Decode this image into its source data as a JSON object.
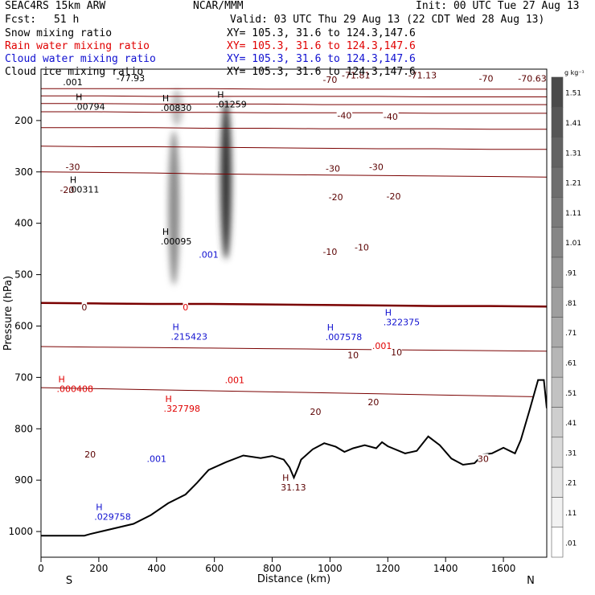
{
  "header": {
    "model": "SEAC4RS 15km ARW",
    "org": "NCAR/MMM",
    "init": "Init: 00 UTC Tue 27 Aug 13",
    "fcst_label": "Fcst:",
    "fcst_value": "51 h",
    "valid": "Valid: 03 UTC Thu 29 Aug 13 (22 CDT Wed 28 Aug 13)",
    "fields": [
      {
        "label": "Snow mixing ratio",
        "xy": "XY= 105.3, 31.6 to 124.3,147.6",
        "color": "#000000"
      },
      {
        "label": "Rain water mixing ratio",
        "xy": "XY= 105.3, 31.6 to 124.3,147.6",
        "color": "#e00000"
      },
      {
        "label": "Cloud water mixing ratio",
        "xy": "XY= 105.3, 31.6 to 124.3,147.6",
        "color": "#1010d0"
      },
      {
        "label": "Cloud ice mixing ratio",
        "xy": "XY= 105.3, 31.6 to 124.3,147.6",
        "color": "#000000"
      }
    ]
  },
  "chart_data": {
    "type": "cross-section",
    "xlabel": "Distance (km)",
    "ylabel": "Pressure (hPa)",
    "xlim": [
      0,
      1750
    ],
    "ylim": [
      1050,
      100
    ],
    "x_ticks": [
      0,
      200,
      400,
      600,
      800,
      1000,
      1200,
      1400,
      1600
    ],
    "y_ticks": [
      1000,
      900,
      800,
      700,
      600,
      500,
      400,
      300,
      200
    ],
    "x_end_labels": {
      "left": "S",
      "right": "N"
    },
    "colorbar": {
      "unit": "g kg⁻¹",
      "levels": [
        ".01",
        ".11",
        ".21",
        ".31",
        ".41",
        ".51",
        ".61",
        ".71",
        ".81",
        ".91",
        "1.01",
        "1.11",
        "1.21",
        "1.31",
        "1.41",
        "1.51"
      ],
      "colors": [
        "#ffffff",
        "#f2f2f2",
        "#e6e6e6",
        "#dadada",
        "#cecece",
        "#c2c2c2",
        "#b6b6b6",
        "#aaaaaa",
        "#9e9e9e",
        "#929292",
        "#868686",
        "#7a7a7a",
        "#6e6e6e",
        "#626262",
        "#565656",
        "#4a4a4a"
      ]
    },
    "terrain": [
      [
        0,
        1008
      ],
      [
        150,
        1008
      ],
      [
        170,
        1005
      ],
      [
        320,
        985
      ],
      [
        380,
        968
      ],
      [
        440,
        945
      ],
      [
        500,
        928
      ],
      [
        540,
        905
      ],
      [
        580,
        880
      ],
      [
        640,
        865
      ],
      [
        700,
        852
      ],
      [
        760,
        857
      ],
      [
        800,
        853
      ],
      [
        840,
        860
      ],
      [
        860,
        875
      ],
      [
        875,
        895
      ],
      [
        890,
        875
      ],
      [
        900,
        860
      ],
      [
        940,
        840
      ],
      [
        980,
        828
      ],
      [
        1020,
        835
      ],
      [
        1050,
        845
      ],
      [
        1080,
        838
      ],
      [
        1120,
        832
      ],
      [
        1160,
        838
      ],
      [
        1180,
        826
      ],
      [
        1200,
        834
      ],
      [
        1260,
        848
      ],
      [
        1300,
        843
      ],
      [
        1340,
        815
      ],
      [
        1380,
        832
      ],
      [
        1420,
        858
      ],
      [
        1460,
        870
      ],
      [
        1500,
        867
      ],
      [
        1530,
        850
      ],
      [
        1560,
        848
      ],
      [
        1600,
        837
      ],
      [
        1640,
        848
      ],
      [
        1660,
        822
      ],
      [
        1690,
        765
      ],
      [
        1720,
        705
      ],
      [
        1740,
        705
      ],
      [
        1750,
        760
      ]
    ],
    "isotherms": [
      {
        "t": -70,
        "p": [
          138,
          138,
          138,
          138,
          139,
          139,
          139,
          139,
          139,
          139
        ]
      },
      {
        "t": -60,
        "p": [
          152,
          152,
          153,
          153,
          153,
          153,
          153,
          154,
          154,
          154
        ]
      },
      {
        "t": -50,
        "p": [
          167,
          167,
          168,
          168,
          168,
          169,
          169,
          169,
          169,
          169
        ]
      },
      {
        "t": -40,
        "p": [
          183,
          183,
          184,
          184,
          185,
          185,
          185,
          186,
          186,
          186
        ]
      },
      {
        "t": -30,
        "p": [
          214,
          214,
          214,
          215,
          215,
          216,
          216,
          216,
          217,
          217
        ]
      },
      {
        "t": -20,
        "p": [
          250,
          251,
          251,
          252,
          253,
          254,
          255,
          255,
          256,
          256
        ]
      },
      {
        "t": -10,
        "p": [
          300,
          301,
          302,
          304,
          305,
          306,
          307,
          308,
          309,
          310
        ]
      },
      {
        "t": 0,
        "p": [
          555,
          556,
          557,
          557,
          558,
          559,
          560,
          561,
          561,
          562
        ]
      },
      {
        "t": 10,
        "p": [
          640,
          641,
          642,
          643,
          644,
          645,
          646,
          647,
          648,
          649
        ]
      },
      {
        "t": 20,
        "p": [
          720,
          722,
          724,
          726,
          728,
          730,
          732,
          734,
          736,
          738
        ]
      }
    ],
    "contour_labels": [
      {
        "text": "-77.93",
        "x": 310,
        "p": 117,
        "color": "#000000"
      },
      {
        "text": "-71.81",
        "x": 1090,
        "p": 112,
        "color": "#5a0000"
      },
      {
        "text": "-71.13",
        "x": 1320,
        "p": 112,
        "color": "#5a0000"
      },
      {
        "text": "-70",
        "x": 1000,
        "p": 120,
        "color": "#5a0000"
      },
      {
        "text": "-70",
        "x": 1540,
        "p": 118,
        "color": "#5a0000"
      },
      {
        "text": "-70.63",
        "x": 1700,
        "p": 118,
        "color": "#5a0000"
      },
      {
        "text": "-40",
        "x": 1050,
        "p": 190,
        "color": "#5a0000"
      },
      {
        "text": "-40",
        "x": 1210,
        "p": 192,
        "color": "#5a0000"
      },
      {
        "text": "-30",
        "x": 1010,
        "p": 293,
        "color": "#5a0000"
      },
      {
        "text": "-30",
        "x": 1160,
        "p": 290,
        "color": "#5a0000"
      },
      {
        "text": "-30",
        "x": 110,
        "p": 290,
        "color": "#5a0000"
      },
      {
        "text": "-20",
        "x": 1020,
        "p": 349,
        "color": "#5a0000"
      },
      {
        "text": "-20",
        "x": 1220,
        "p": 347,
        "color": "#5a0000"
      },
      {
        "text": "-20",
        "x": 90,
        "p": 335,
        "color": "#5a0000"
      },
      {
        "text": "-10",
        "x": 1000,
        "p": 455,
        "color": "#5a0000"
      },
      {
        "text": "-10",
        "x": 1110,
        "p": 447,
        "color": "#5a0000"
      },
      {
        "text": "0",
        "x": 150,
        "p": 563,
        "color": "#5a0000"
      },
      {
        "text": "10",
        "x": 1080,
        "p": 656,
        "color": "#5a0000"
      },
      {
        "text": "10",
        "x": 1230,
        "p": 651,
        "color": "#5a0000"
      },
      {
        "text": "20",
        "x": 1150,
        "p": 748,
        "color": "#5a0000"
      },
      {
        "text": "20",
        "x": 950,
        "p": 767,
        "color": "#5a0000"
      },
      {
        "text": "20",
        "x": 170,
        "p": 850,
        "color": "#5a0000"
      },
      {
        "text": "30",
        "x": 1530,
        "p": 858,
        "color": "#5a0000"
      },
      {
        "text": "0",
        "x": 500,
        "p": 563,
        "color": "#e00000"
      },
      {
        "text": ".001",
        "x": 670,
        "p": 705,
        "color": "#e00000"
      },
      {
        "text": ".001",
        "x": 1180,
        "p": 638,
        "color": "#e00000"
      },
      {
        "text": ".001",
        "x": 580,
        "p": 461,
        "color": "#1010d0"
      },
      {
        "text": ".001",
        "x": 400,
        "p": 858,
        "color": "#1010d0"
      },
      {
        "text": ".001",
        "x": 110,
        "p": 125,
        "color": "#000000"
      }
    ],
    "highs": [
      {
        "value": ".00794",
        "x": 170,
        "p": 170,
        "color": "#000000"
      },
      {
        "value": ".00830",
        "x": 470,
        "p": 172,
        "color": "#000000"
      },
      {
        "value": ".01259",
        "x": 660,
        "p": 165,
        "color": "#000000"
      },
      {
        "value": ".00311",
        "x": 150,
        "p": 331,
        "color": "#000000"
      },
      {
        "value": ".00095",
        "x": 470,
        "p": 432,
        "color": "#000000"
      },
      {
        "value": ".215423",
        "x": 505,
        "p": 617,
        "color": "#1010d0"
      },
      {
        "value": ".327798",
        "x": 480,
        "p": 757,
        "color": "#e00000"
      },
      {
        "value": ".000408",
        "x": 110,
        "p": 719,
        "color": "#e00000"
      },
      {
        "value": ".029758",
        "x": 240,
        "p": 968,
        "color": "#1010d0"
      },
      {
        "value": ".007578",
        "x": 1040,
        "p": 618,
        "color": "#1010d0"
      },
      {
        "value": ".322375",
        "x": 1240,
        "p": 589,
        "color": "#1010d0"
      },
      {
        "value": "31.13",
        "x": 885,
        "p": 911,
        "color": "#5a0000"
      }
    ],
    "snow_ice_cores": [
      {
        "x": 460,
        "p_top": 220,
        "p_bot": 520,
        "max": 0.6
      },
      {
        "x": 640,
        "p_top": 160,
        "p_bot": 470,
        "max": 1.05
      },
      {
        "x": 470,
        "p_top": 140,
        "p_bot": 210,
        "max": 0.35
      }
    ]
  }
}
